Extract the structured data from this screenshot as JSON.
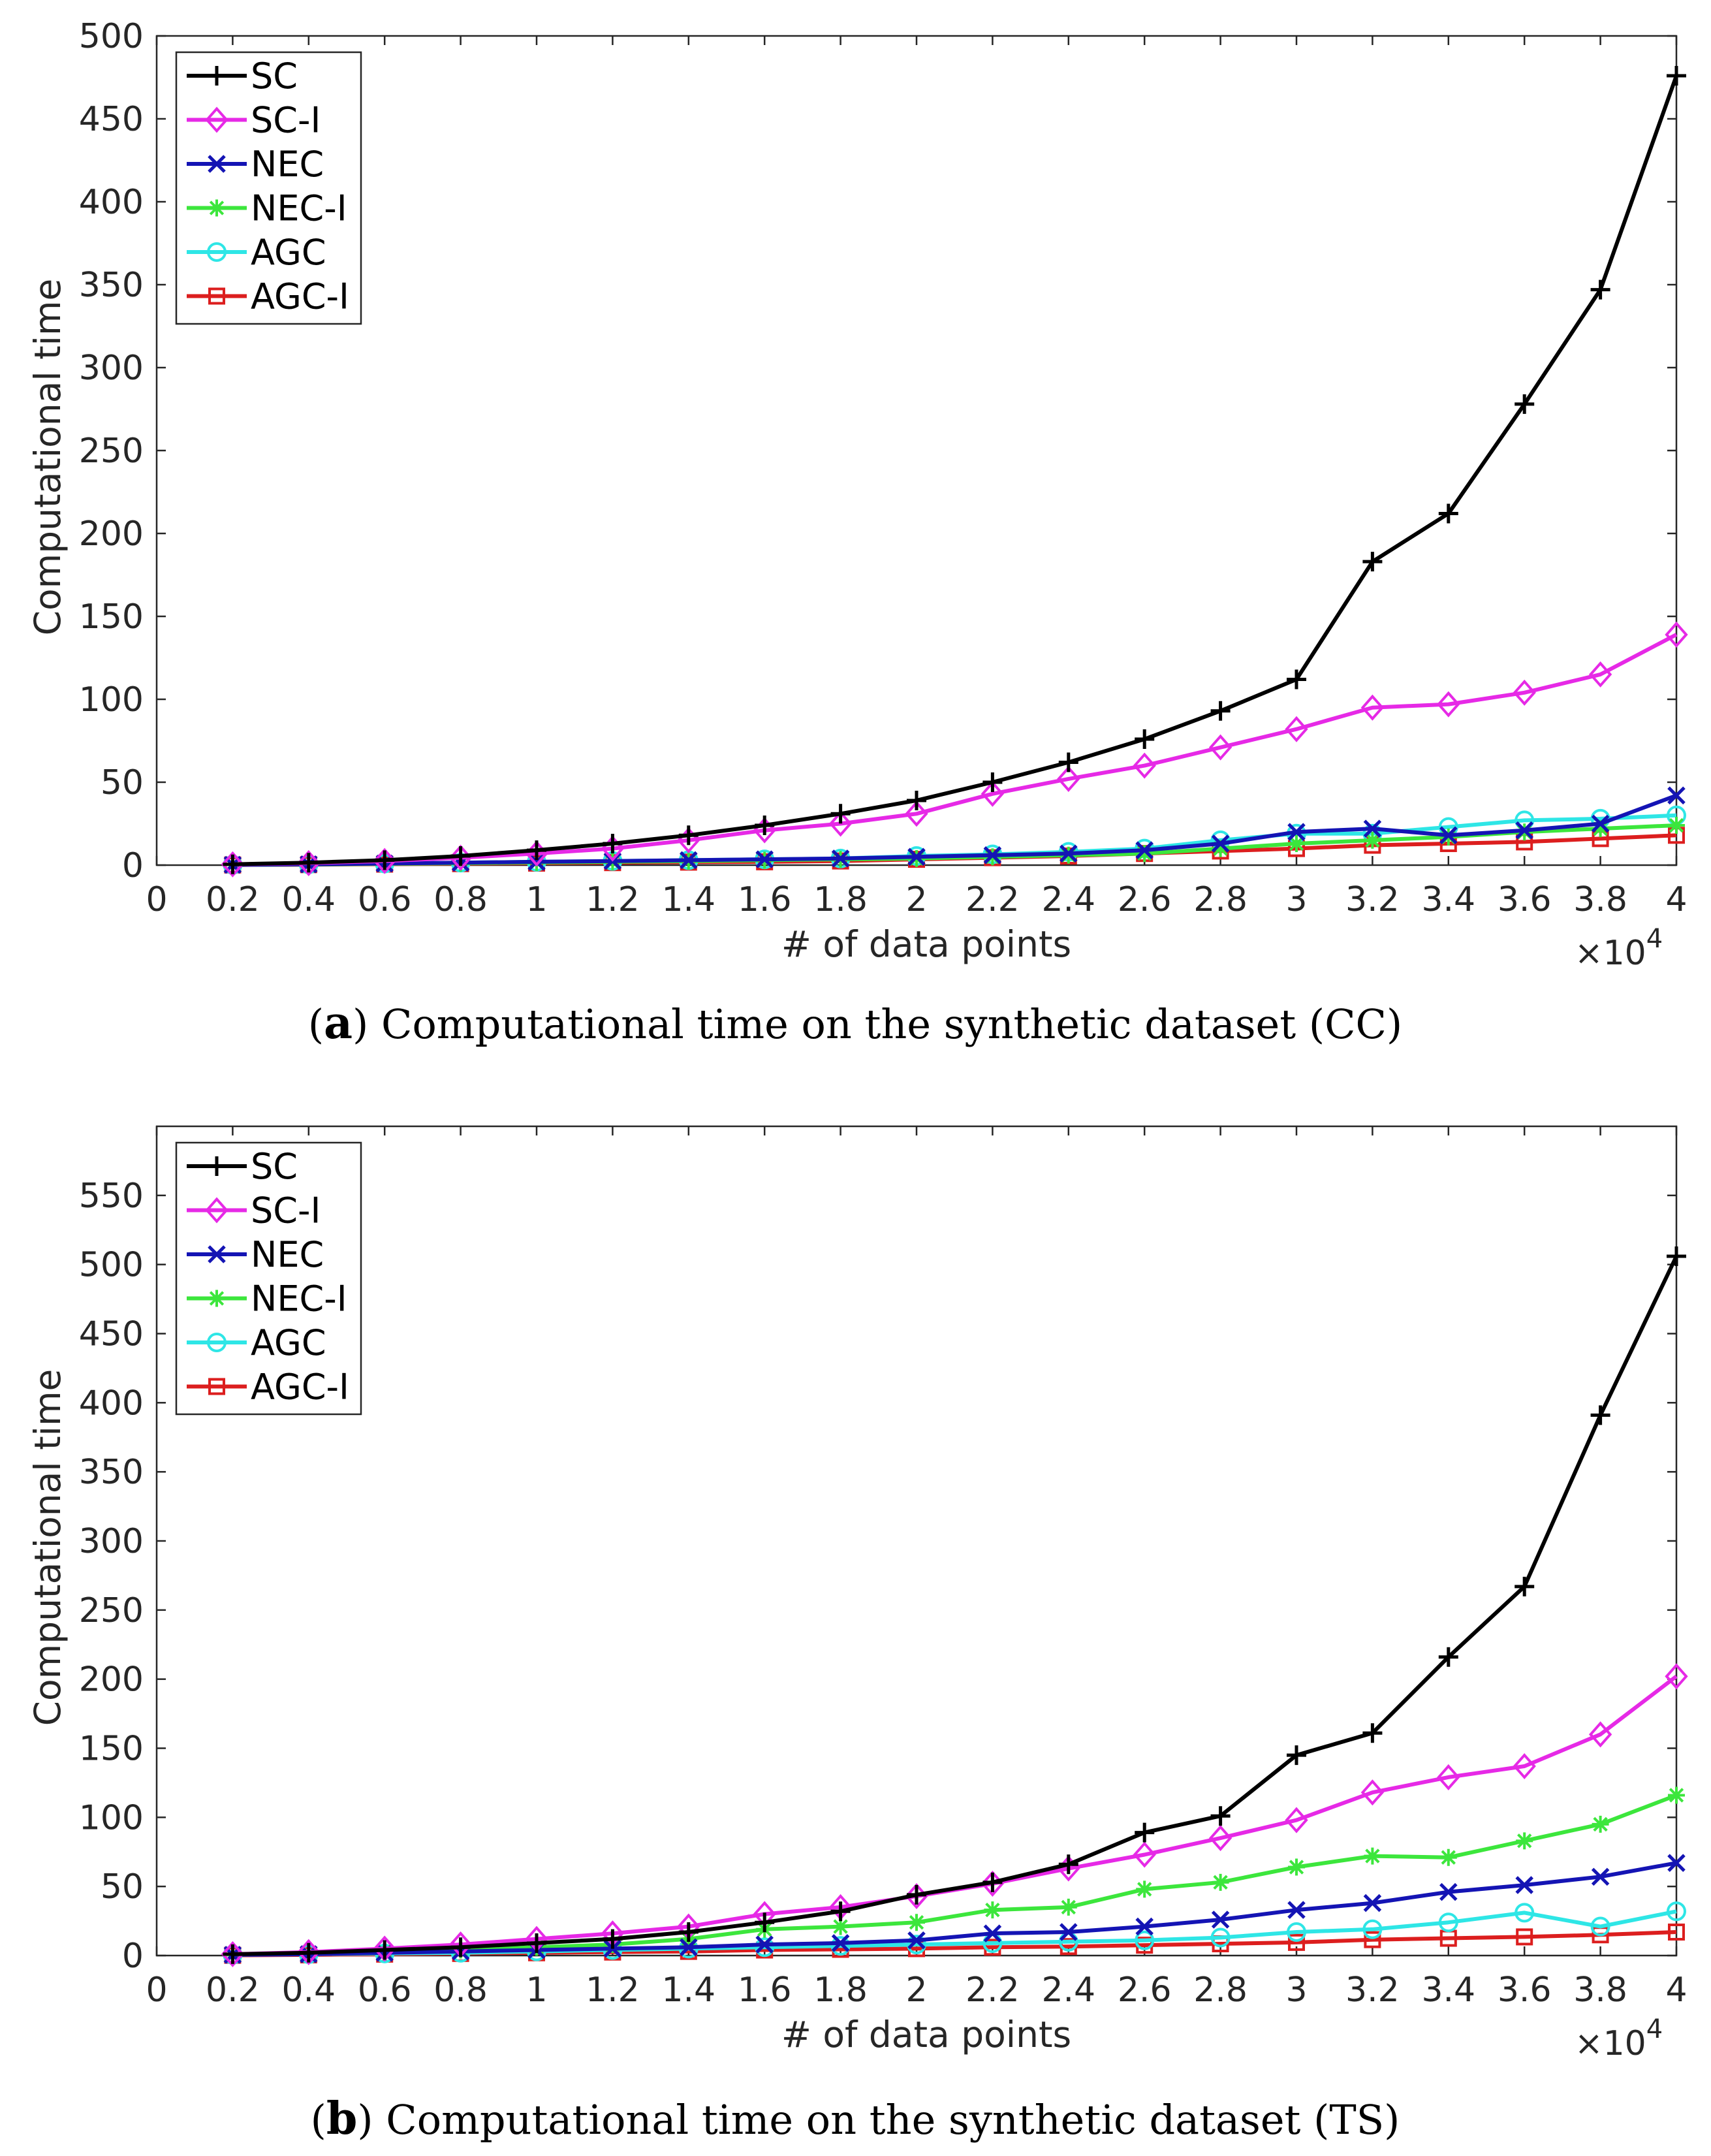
{
  "colors": {
    "SC": "#000000",
    "SC-I": "#e629e6",
    "NEC": "#1414b4",
    "NEC-I": "#3ce63c",
    "AGC": "#2ee6e6",
    "AGC-I": "#dc1e1e",
    "axis": "#262626"
  },
  "chart_data": [
    {
      "id": "a",
      "type": "line",
      "caption_letter": "a",
      "caption_text": " Computational time on the synthetic dataset (CC)",
      "xlabel": "# of data points",
      "ylabel": "Computational time",
      "x_multiplier": "×10",
      "x_multiplier_exp": "4",
      "xlim": [
        0,
        4
      ],
      "ylim": [
        0,
        500
      ],
      "xticks": [
        0,
        0.2,
        0.4,
        0.6,
        0.8,
        1,
        1.2,
        1.4,
        1.6,
        1.8,
        2,
        2.2,
        2.4,
        2.6,
        2.8,
        3,
        3.2,
        3.4,
        3.6,
        3.8,
        4
      ],
      "xtick_labels": [
        "0",
        "0.2",
        "0.4",
        "0.6",
        "0.8",
        "1",
        "1.2",
        "1.4",
        "1.6",
        "1.8",
        "2",
        "2.2",
        "2.4",
        "2.6",
        "2.8",
        "3",
        "3.2",
        "3.4",
        "3.6",
        "3.8",
        "4"
      ],
      "yticks": [
        0,
        50,
        100,
        150,
        200,
        250,
        300,
        350,
        400,
        450,
        500
      ],
      "ytick_labels": [
        "0",
        "50",
        "100",
        "150",
        "200",
        "250",
        "300",
        "350",
        "400",
        "450",
        "500"
      ],
      "legend_position": "top-left",
      "x": [
        0.2,
        0.4,
        0.6,
        0.8,
        1,
        1.2,
        1.4,
        1.6,
        1.8,
        2,
        2.2,
        2.4,
        2.6,
        2.8,
        3,
        3.2,
        3.4,
        3.6,
        3.8,
        4
      ],
      "series": [
        {
          "name": "SC",
          "marker": "plus",
          "values": [
            0.5,
            1.5,
            3,
            5.5,
            9,
            13,
            18,
            24,
            31,
            39,
            50,
            62,
            76,
            93,
            112,
            183,
            212,
            278,
            347,
            476
          ]
        },
        {
          "name": "SC-I",
          "marker": "diamond",
          "values": [
            0.5,
            1.2,
            2.5,
            4.5,
            7,
            10,
            15,
            21,
            25,
            31,
            43,
            52,
            60,
            71,
            82,
            95,
            97,
            104,
            115,
            139
          ]
        },
        {
          "name": "NEC",
          "marker": "x",
          "values": [
            0.2,
            0.5,
            1,
            1.5,
            2,
            2.5,
            3,
            3.5,
            4,
            5,
            6,
            7,
            9,
            13,
            20,
            22,
            18,
            21,
            25,
            42
          ]
        },
        {
          "name": "NEC-I",
          "marker": "star",
          "values": [
            0.2,
            0.4,
            0.8,
            1.2,
            1.6,
            2,
            2.5,
            3,
            3.5,
            4,
            5,
            6,
            7,
            10,
            13,
            15,
            17,
            20,
            22,
            24
          ]
        },
        {
          "name": "AGC",
          "marker": "circle",
          "values": [
            0.2,
            0.5,
            1,
            1.5,
            2,
            2.5,
            3,
            3.5,
            4,
            5.5,
            6.5,
            8,
            10,
            15,
            19,
            19,
            23,
            27,
            28,
            30
          ]
        },
        {
          "name": "AGC-I",
          "marker": "square",
          "values": [
            0.1,
            0.3,
            0.6,
            0.9,
            1.2,
            1.5,
            1.8,
            2,
            2.5,
            3.5,
            4.5,
            5.5,
            7,
            8.5,
            10,
            12,
            13,
            14,
            16,
            18
          ]
        }
      ]
    },
    {
      "id": "b",
      "type": "line",
      "caption_letter": "b",
      "caption_text": " Computational time on the synthetic dataset (TS)",
      "xlabel": "# of data points",
      "ylabel": "Computational time",
      "x_multiplier": "×10",
      "x_multiplier_exp": "4",
      "xlim": [
        0,
        4
      ],
      "ylim": [
        0,
        600
      ],
      "xticks": [
        0,
        0.2,
        0.4,
        0.6,
        0.8,
        1,
        1.2,
        1.4,
        1.6,
        1.8,
        2,
        2.2,
        2.4,
        2.6,
        2.8,
        3,
        3.2,
        3.4,
        3.6,
        3.8,
        4
      ],
      "xtick_labels": [
        "0",
        "0.2",
        "0.4",
        "0.6",
        "0.8",
        "1",
        "1.2",
        "1.4",
        "1.6",
        "1.8",
        "2",
        "2.2",
        "2.4",
        "2.6",
        "2.8",
        "3",
        "3.2",
        "3.4",
        "3.6",
        "3.8",
        "4"
      ],
      "yticks": [
        0,
        50,
        100,
        150,
        200,
        250,
        300,
        350,
        400,
        450,
        500,
        550
      ],
      "ytick_labels": [
        "0",
        "50",
        "100",
        "150",
        "200",
        "250",
        "300",
        "350",
        "400",
        "450",
        "500",
        "550"
      ],
      "legend_position": "top-left",
      "x": [
        0.2,
        0.4,
        0.6,
        0.8,
        1,
        1.2,
        1.4,
        1.6,
        1.8,
        2,
        2.2,
        2.4,
        2.6,
        2.8,
        3,
        3.2,
        3.4,
        3.6,
        3.8,
        4
      ],
      "series": [
        {
          "name": "SC",
          "marker": "plus",
          "values": [
            1,
            2,
            4,
            6,
            9,
            12,
            17,
            24,
            32,
            44,
            53,
            66,
            89,
            101,
            145,
            161,
            216,
            267,
            391,
            506
          ]
        },
        {
          "name": "SC-I",
          "marker": "diamond",
          "values": [
            1,
            2.5,
            5,
            8,
            12,
            16,
            21,
            30,
            35,
            43,
            52,
            63,
            73,
            85,
            98,
            118,
            129,
            137,
            160,
            202
          ]
        },
        {
          "name": "NEC",
          "marker": "x",
          "values": [
            0.5,
            1,
            2,
            3,
            4,
            5,
            6,
            8,
            9,
            11,
            16,
            17,
            21,
            26,
            33,
            38,
            46,
            51,
            57,
            67
          ]
        },
        {
          "name": "NEC-I",
          "marker": "star",
          "values": [
            0.5,
            1.5,
            3,
            4,
            6,
            8,
            12,
            19,
            21,
            24,
            33,
            35,
            48,
            53,
            64,
            72,
            71,
            83,
            95,
            116
          ]
        },
        {
          "name": "AGC",
          "marker": "circle",
          "values": [
            0.5,
            1,
            1.5,
            2,
            3,
            4,
            5,
            6,
            7,
            8,
            9,
            10,
            11,
            13,
            17,
            19,
            24,
            31,
            21,
            32
          ]
        },
        {
          "name": "AGC-I",
          "marker": "square",
          "values": [
            0.2,
            0.5,
            1,
            1.5,
            2,
            2.5,
            3,
            4,
            4.5,
            5,
            6,
            6.5,
            7.5,
            8.5,
            9.5,
            11.5,
            12.5,
            13.5,
            15,
            17
          ]
        }
      ]
    }
  ]
}
